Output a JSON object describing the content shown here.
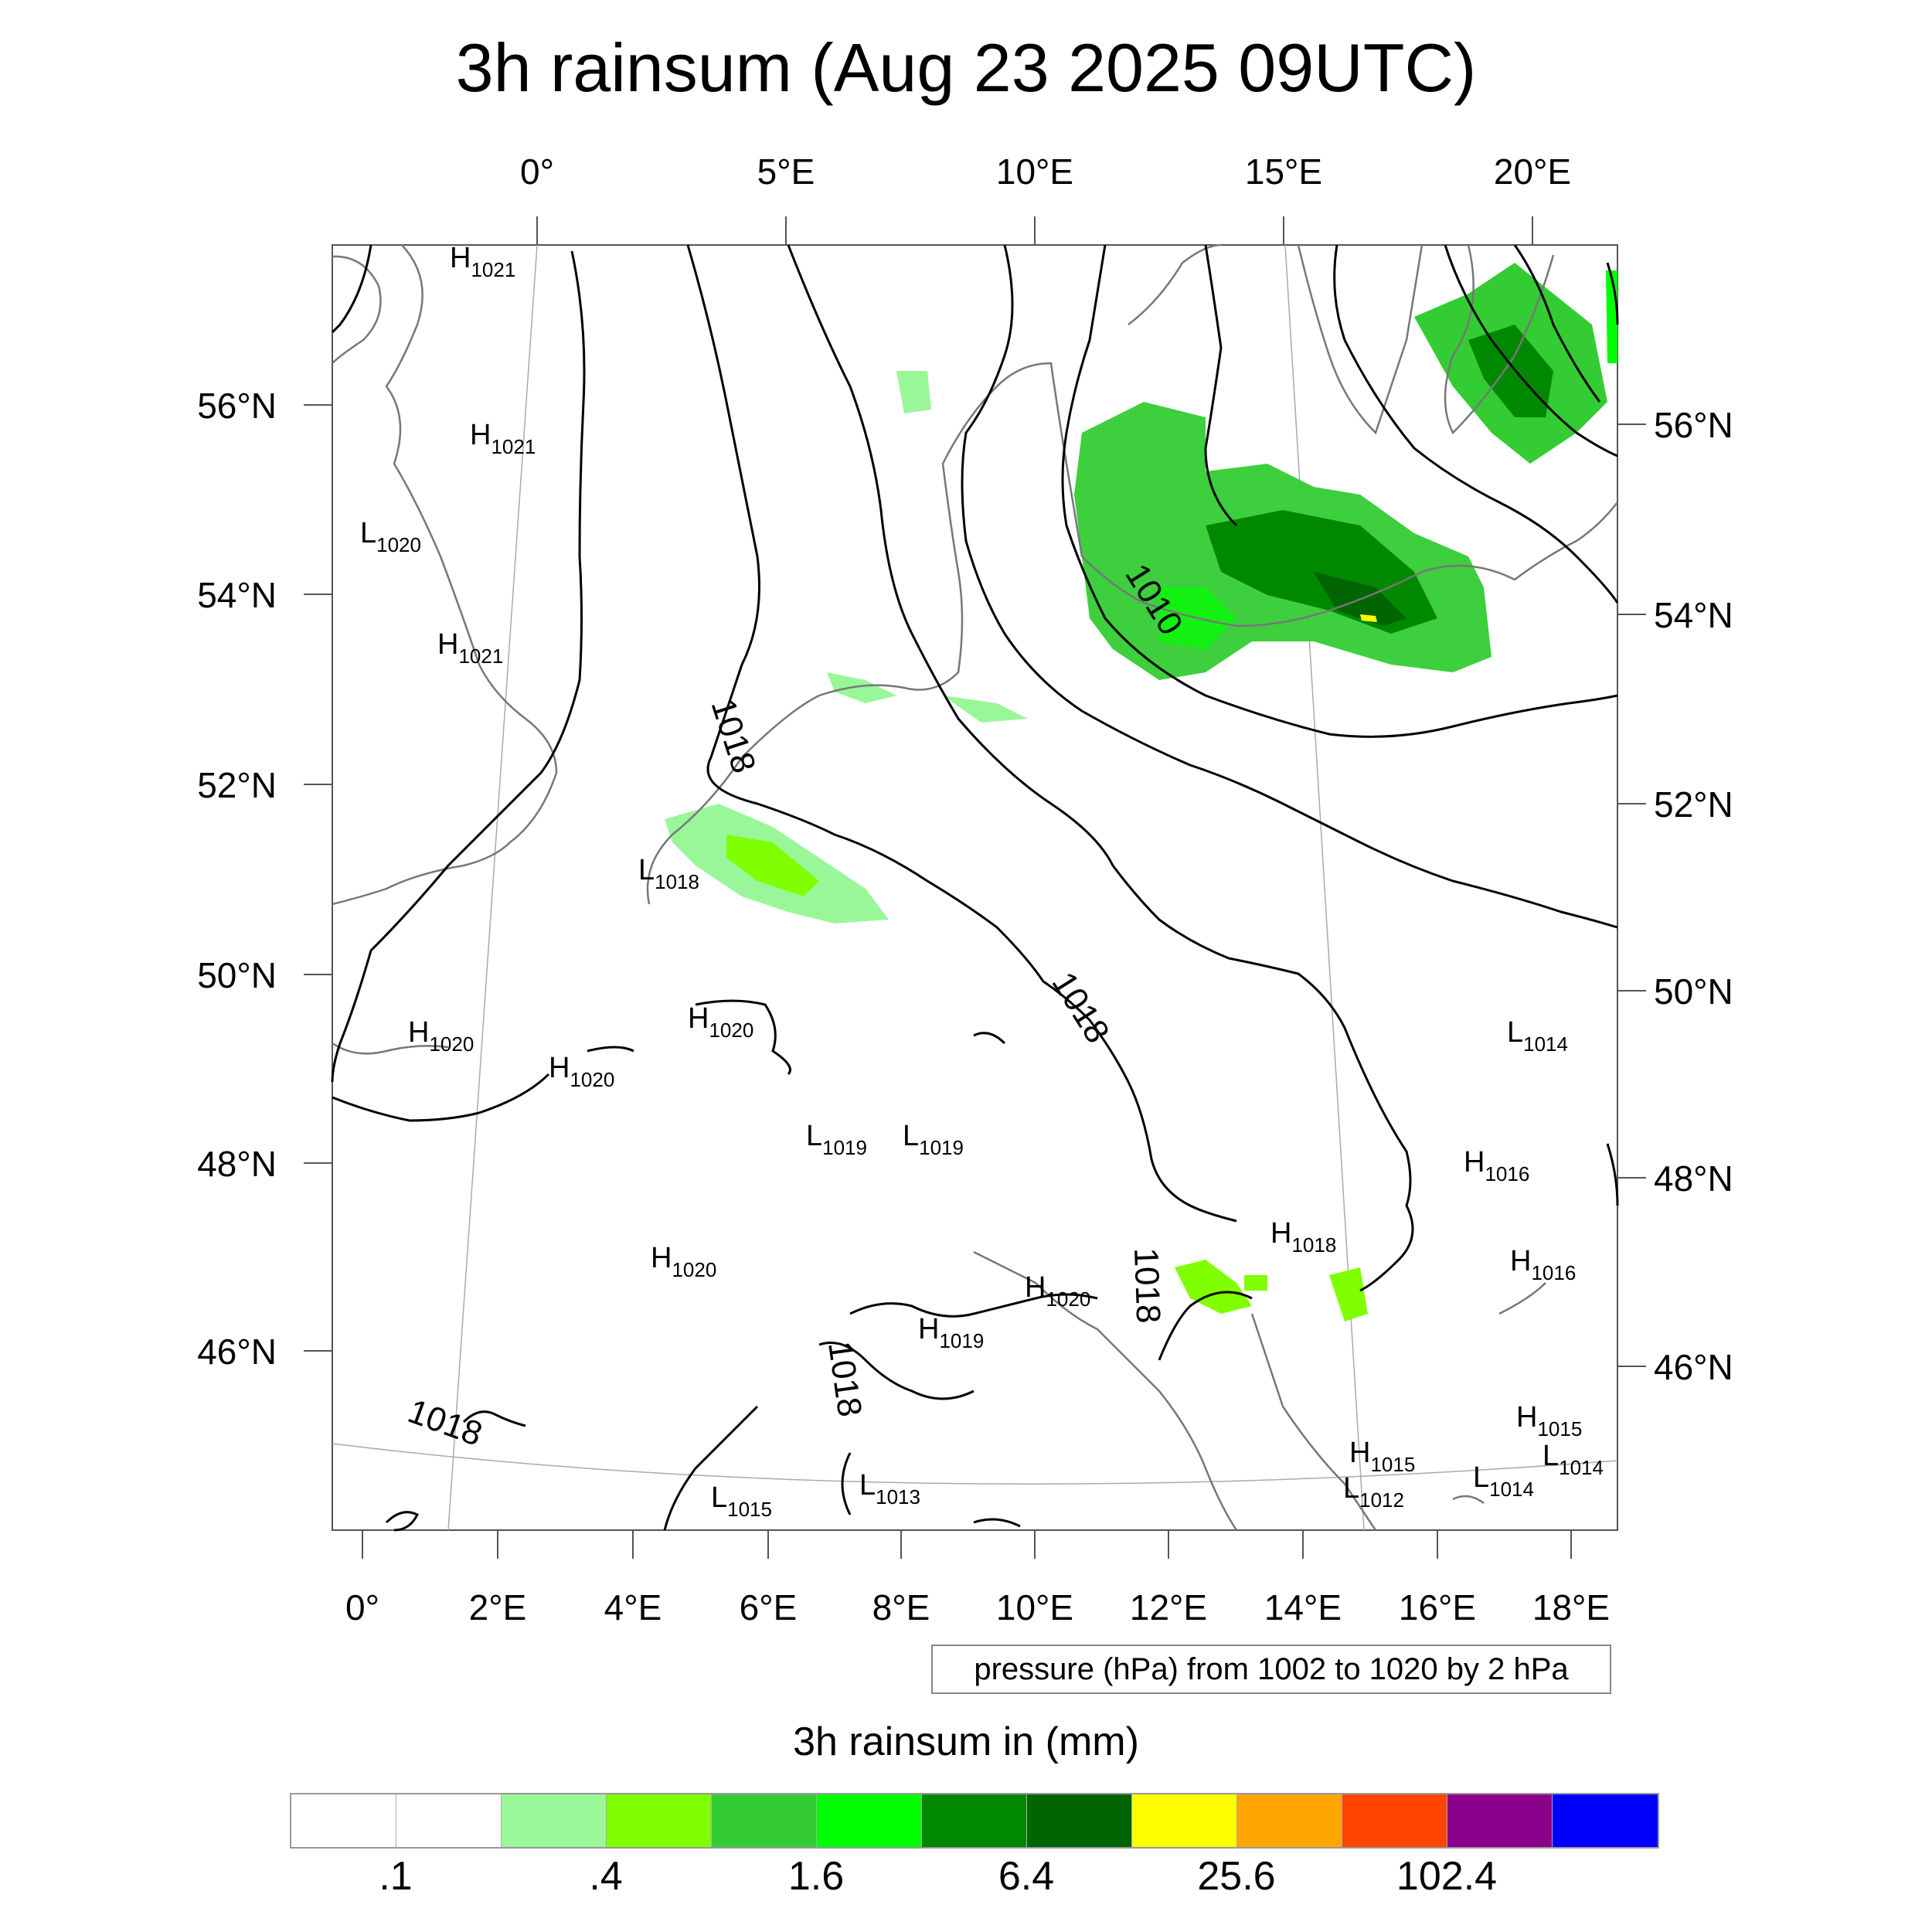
{
  "title": "3h rainsum (Aug 23 2025 09UTC)",
  "top_lon_labels": [
    "0°",
    "5°E",
    "10°E",
    "15°E",
    "20°E"
  ],
  "bottom_lon_labels": [
    "0°",
    "2°E",
    "4°E",
    "6°E",
    "8°E",
    "10°E",
    "12°E",
    "14°E",
    "16°E",
    "18°E"
  ],
  "left_lat_labels": [
    "56°N",
    "54°N",
    "52°N",
    "50°N",
    "48°N",
    "46°N"
  ],
  "right_lat_labels": [
    "56°N",
    "54°N",
    "52°N",
    "50°N",
    "48°N",
    "46°N"
  ],
  "pressure_note": "pressure (hPa) from 1002 to 1020 by 2 hPa",
  "legend": {
    "title": "3h rainsum in (mm)",
    "colors": [
      "#ffffff",
      "#ffffff",
      "#99f799",
      "#80ff00",
      "#33cc33",
      "#00ff00",
      "#008800",
      "#006400",
      "#ffff00",
      "#ffa500",
      "#ff4500",
      "#8b008b",
      "#0000ff"
    ],
    "tick_labels": [
      ".1",
      ".4",
      "1.6",
      "6.4",
      "25.6",
      "102.4"
    ]
  },
  "contour_labels": [
    "1018",
    "1018",
    "1018",
    "1010",
    "1018",
    "1018"
  ],
  "pressure_centers": [
    {
      "kind": "H",
      "value": "1021"
    },
    {
      "kind": "H",
      "value": "1021"
    },
    {
      "kind": "L",
      "value": "1020"
    },
    {
      "kind": "H",
      "value": "1021"
    },
    {
      "kind": "L",
      "value": "1018"
    },
    {
      "kind": "H",
      "value": "1020"
    },
    {
      "kind": "H",
      "value": "1020"
    },
    {
      "kind": "H",
      "value": "1020"
    },
    {
      "kind": "L",
      "value": "1019"
    },
    {
      "kind": "L",
      "value": "1019"
    },
    {
      "kind": "H",
      "value": "1020"
    },
    {
      "kind": "H",
      "value": "1020"
    },
    {
      "kind": "H",
      "value": "1019"
    },
    {
      "kind": "H",
      "value": "1018"
    },
    {
      "kind": "L",
      "value": "1014"
    },
    {
      "kind": "H",
      "value": "1016"
    },
    {
      "kind": "H",
      "value": "1016"
    },
    {
      "kind": "H",
      "value": "1015"
    },
    {
      "kind": "H",
      "value": "1015"
    },
    {
      "kind": "L",
      "value": "1014"
    },
    {
      "kind": "L",
      "value": "1014"
    },
    {
      "kind": "L",
      "value": "1013"
    },
    {
      "kind": "L",
      "value": "1012"
    },
    {
      "kind": "L",
      "value": "1015"
    }
  ]
}
